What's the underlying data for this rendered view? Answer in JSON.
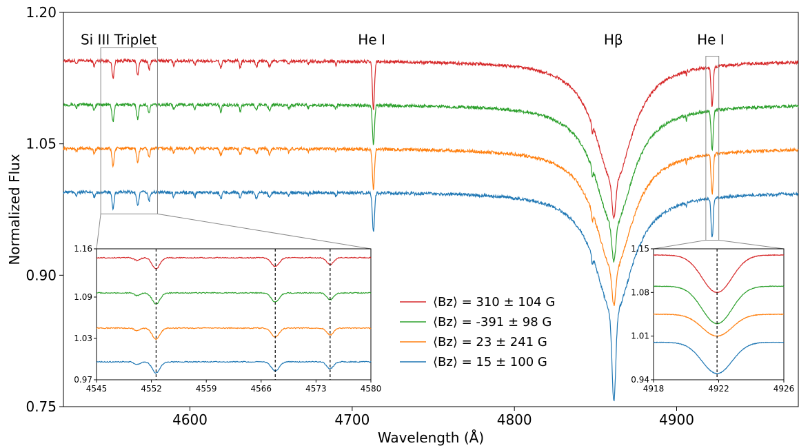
{
  "chart_data": [
    {
      "type": "line",
      "title": "",
      "xlabel": "Wavelength (Å)",
      "ylabel": "Normalized Flux",
      "xlim": [
        4522,
        4975
      ],
      "ylim": [
        0.75,
        1.2
      ],
      "xticks": [
        4600,
        4700,
        4800,
        4900
      ],
      "yticks": [
        "0.75",
        "0.90",
        "1.05",
        "1.20"
      ],
      "grid": false,
      "legend_placement": "lower-center",
      "annotations": [
        {
          "text": "Si III Triplet",
          "x": 4556,
          "y": 1.168
        },
        {
          "text": "He I",
          "x": 4712,
          "y": 1.168
        },
        {
          "text": "Hβ",
          "x": 4861,
          "y": 1.168
        },
        {
          "text": "He I",
          "x": 4921,
          "y": 1.168
        }
      ],
      "series": [
        {
          "name": "⟨Bz⟩ = 310 ± 104 G",
          "color": "#d62728",
          "continuum": 1.145,
          "depth_hbeta": 0.98
        },
        {
          "name": "⟨Bz⟩ = -391 ± 98 G",
          "color": "#2ca02c",
          "continuum": 1.095,
          "depth_hbeta": 0.93
        },
        {
          "name": "⟨Bz⟩ = 23 ± 241 G",
          "color": "#ff7f0e",
          "continuum": 1.045,
          "depth_hbeta": 0.88
        },
        {
          "name": "⟨Bz⟩ = 15 ± 100 G",
          "color": "#1f77b4",
          "continuum": 0.995,
          "depth_hbeta": 0.77
        }
      ],
      "lines_angstrom": [
        4552.6,
        4567.8,
        4574.8,
        4713.1,
        4861.3,
        4921.9
      ]
    },
    {
      "type": "line",
      "title": "",
      "xlim": [
        4545,
        4580
      ],
      "ylim": [
        0.97,
        1.16
      ],
      "xticks": [
        "4545",
        "4552",
        "4559",
        "4566",
        "4573",
        "4580"
      ],
      "yticks": [
        "0.97",
        "1.03",
        "1.09",
        "1.16"
      ],
      "vlines": [
        4552.6,
        4567.8,
        4574.8
      ],
      "offsets": [
        1.147,
        1.096,
        1.045,
        0.996
      ]
    },
    {
      "type": "line",
      "title": "",
      "xlim": [
        4918,
        4926
      ],
      "ylim": [
        0.94,
        1.15
      ],
      "xticks": [
        "4918",
        "4922",
        "4926"
      ],
      "yticks": [
        "0.94",
        "1.01",
        "1.08",
        "1.15"
      ],
      "vlines": [
        4921.9
      ],
      "offsets": [
        1.14,
        1.09,
        1.045,
        1.0
      ]
    }
  ]
}
